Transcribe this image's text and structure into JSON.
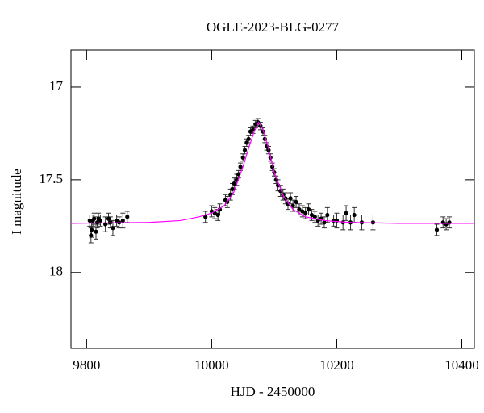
{
  "chart_data": {
    "type": "scatter",
    "title": "OGLE-2023-BLG-0277",
    "xlabel": "HJD - 2450000",
    "ylabel": "I magnitude",
    "xlim": [
      9775,
      10420
    ],
    "xticks": [
      9800,
      10000,
      10200,
      10400
    ],
    "ylim": [
      16.8,
      18.41
    ],
    "yticks": [
      17,
      17.5,
      18
    ],
    "y_inverted": true,
    "series": [
      {
        "type": "scatter",
        "color": "#000000",
        "x": [
          9805,
          9807,
          9808,
          9810,
          9812,
          9815,
          9817,
          9819,
          9822,
          9830,
          9835,
          9838,
          9842,
          9848,
          9852,
          9858,
          9865,
          9990,
          10000,
          10005,
          10010,
          10013,
          10022,
          10025,
          10030,
          10033,
          10036,
          10040,
          10043,
          10046,
          10050,
          10053,
          10056,
          10059,
          10062,
          10066,
          10070,
          10074,
          10078,
          10082,
          10085,
          10088,
          10091,
          10094,
          10097,
          10100,
          10103,
          10106,
          10110,
          10114,
          10118,
          10122,
          10126,
          10130,
          10135,
          10140,
          10145,
          10150,
          10155,
          10160,
          10165,
          10170,
          10175,
          10180,
          10185,
          10195,
          10200,
          10210,
          10215,
          10222,
          10228,
          10240,
          10258,
          10360,
          10370,
          10375,
          10380
        ],
        "values": [
          17.72,
          17.8,
          17.77,
          17.72,
          17.71,
          17.78,
          17.73,
          17.71,
          17.72,
          17.74,
          17.71,
          17.73,
          17.76,
          17.72,
          17.73,
          17.72,
          17.7,
          17.7,
          17.67,
          17.68,
          17.69,
          17.66,
          17.61,
          17.62,
          17.58,
          17.55,
          17.52,
          17.5,
          17.47,
          17.43,
          17.38,
          17.34,
          17.3,
          17.28,
          17.24,
          17.23,
          17.2,
          17.19,
          17.21,
          17.24,
          17.28,
          17.32,
          17.34,
          17.38,
          17.43,
          17.46,
          17.5,
          17.53,
          17.56,
          17.58,
          17.6,
          17.63,
          17.6,
          17.64,
          17.62,
          17.66,
          17.67,
          17.68,
          17.66,
          17.69,
          17.7,
          17.72,
          17.71,
          17.73,
          17.69,
          17.72,
          17.72,
          17.73,
          17.68,
          17.73,
          17.69,
          17.73,
          17.73,
          17.77,
          17.73,
          17.74,
          17.73
        ],
        "errors": [
          0.03,
          0.04,
          0.04,
          0.03,
          0.03,
          0.04,
          0.03,
          0.03,
          0.03,
          0.04,
          0.03,
          0.03,
          0.04,
          0.03,
          0.03,
          0.04,
          0.03,
          0.03,
          0.03,
          0.03,
          0.03,
          0.03,
          0.03,
          0.03,
          0.03,
          0.03,
          0.03,
          0.03,
          0.02,
          0.02,
          0.02,
          0.02,
          0.02,
          0.02,
          0.02,
          0.02,
          0.02,
          0.02,
          0.02,
          0.02,
          0.02,
          0.02,
          0.02,
          0.02,
          0.02,
          0.02,
          0.02,
          0.03,
          0.03,
          0.03,
          0.03,
          0.03,
          0.03,
          0.03,
          0.03,
          0.03,
          0.03,
          0.03,
          0.03,
          0.03,
          0.03,
          0.03,
          0.03,
          0.03,
          0.04,
          0.03,
          0.04,
          0.04,
          0.04,
          0.04,
          0.04,
          0.04,
          0.04,
          0.03,
          0.03,
          0.03,
          0.03
        ]
      },
      {
        "type": "line",
        "color": "#ff00ff",
        "x": [
          9775,
          9900,
          9950,
          9980,
          10000,
          10020,
          10035,
          10050,
          10060,
          10068,
          10075,
          10082,
          10090,
          10100,
          10115,
          10130,
          10150,
          10180,
          10220,
          10300,
          10420
        ],
        "values": [
          17.735,
          17.73,
          17.72,
          17.7,
          17.68,
          17.64,
          17.57,
          17.43,
          17.32,
          17.24,
          17.19,
          17.23,
          17.32,
          17.46,
          17.59,
          17.66,
          17.7,
          17.72,
          17.73,
          17.735,
          17.735
        ]
      }
    ]
  }
}
